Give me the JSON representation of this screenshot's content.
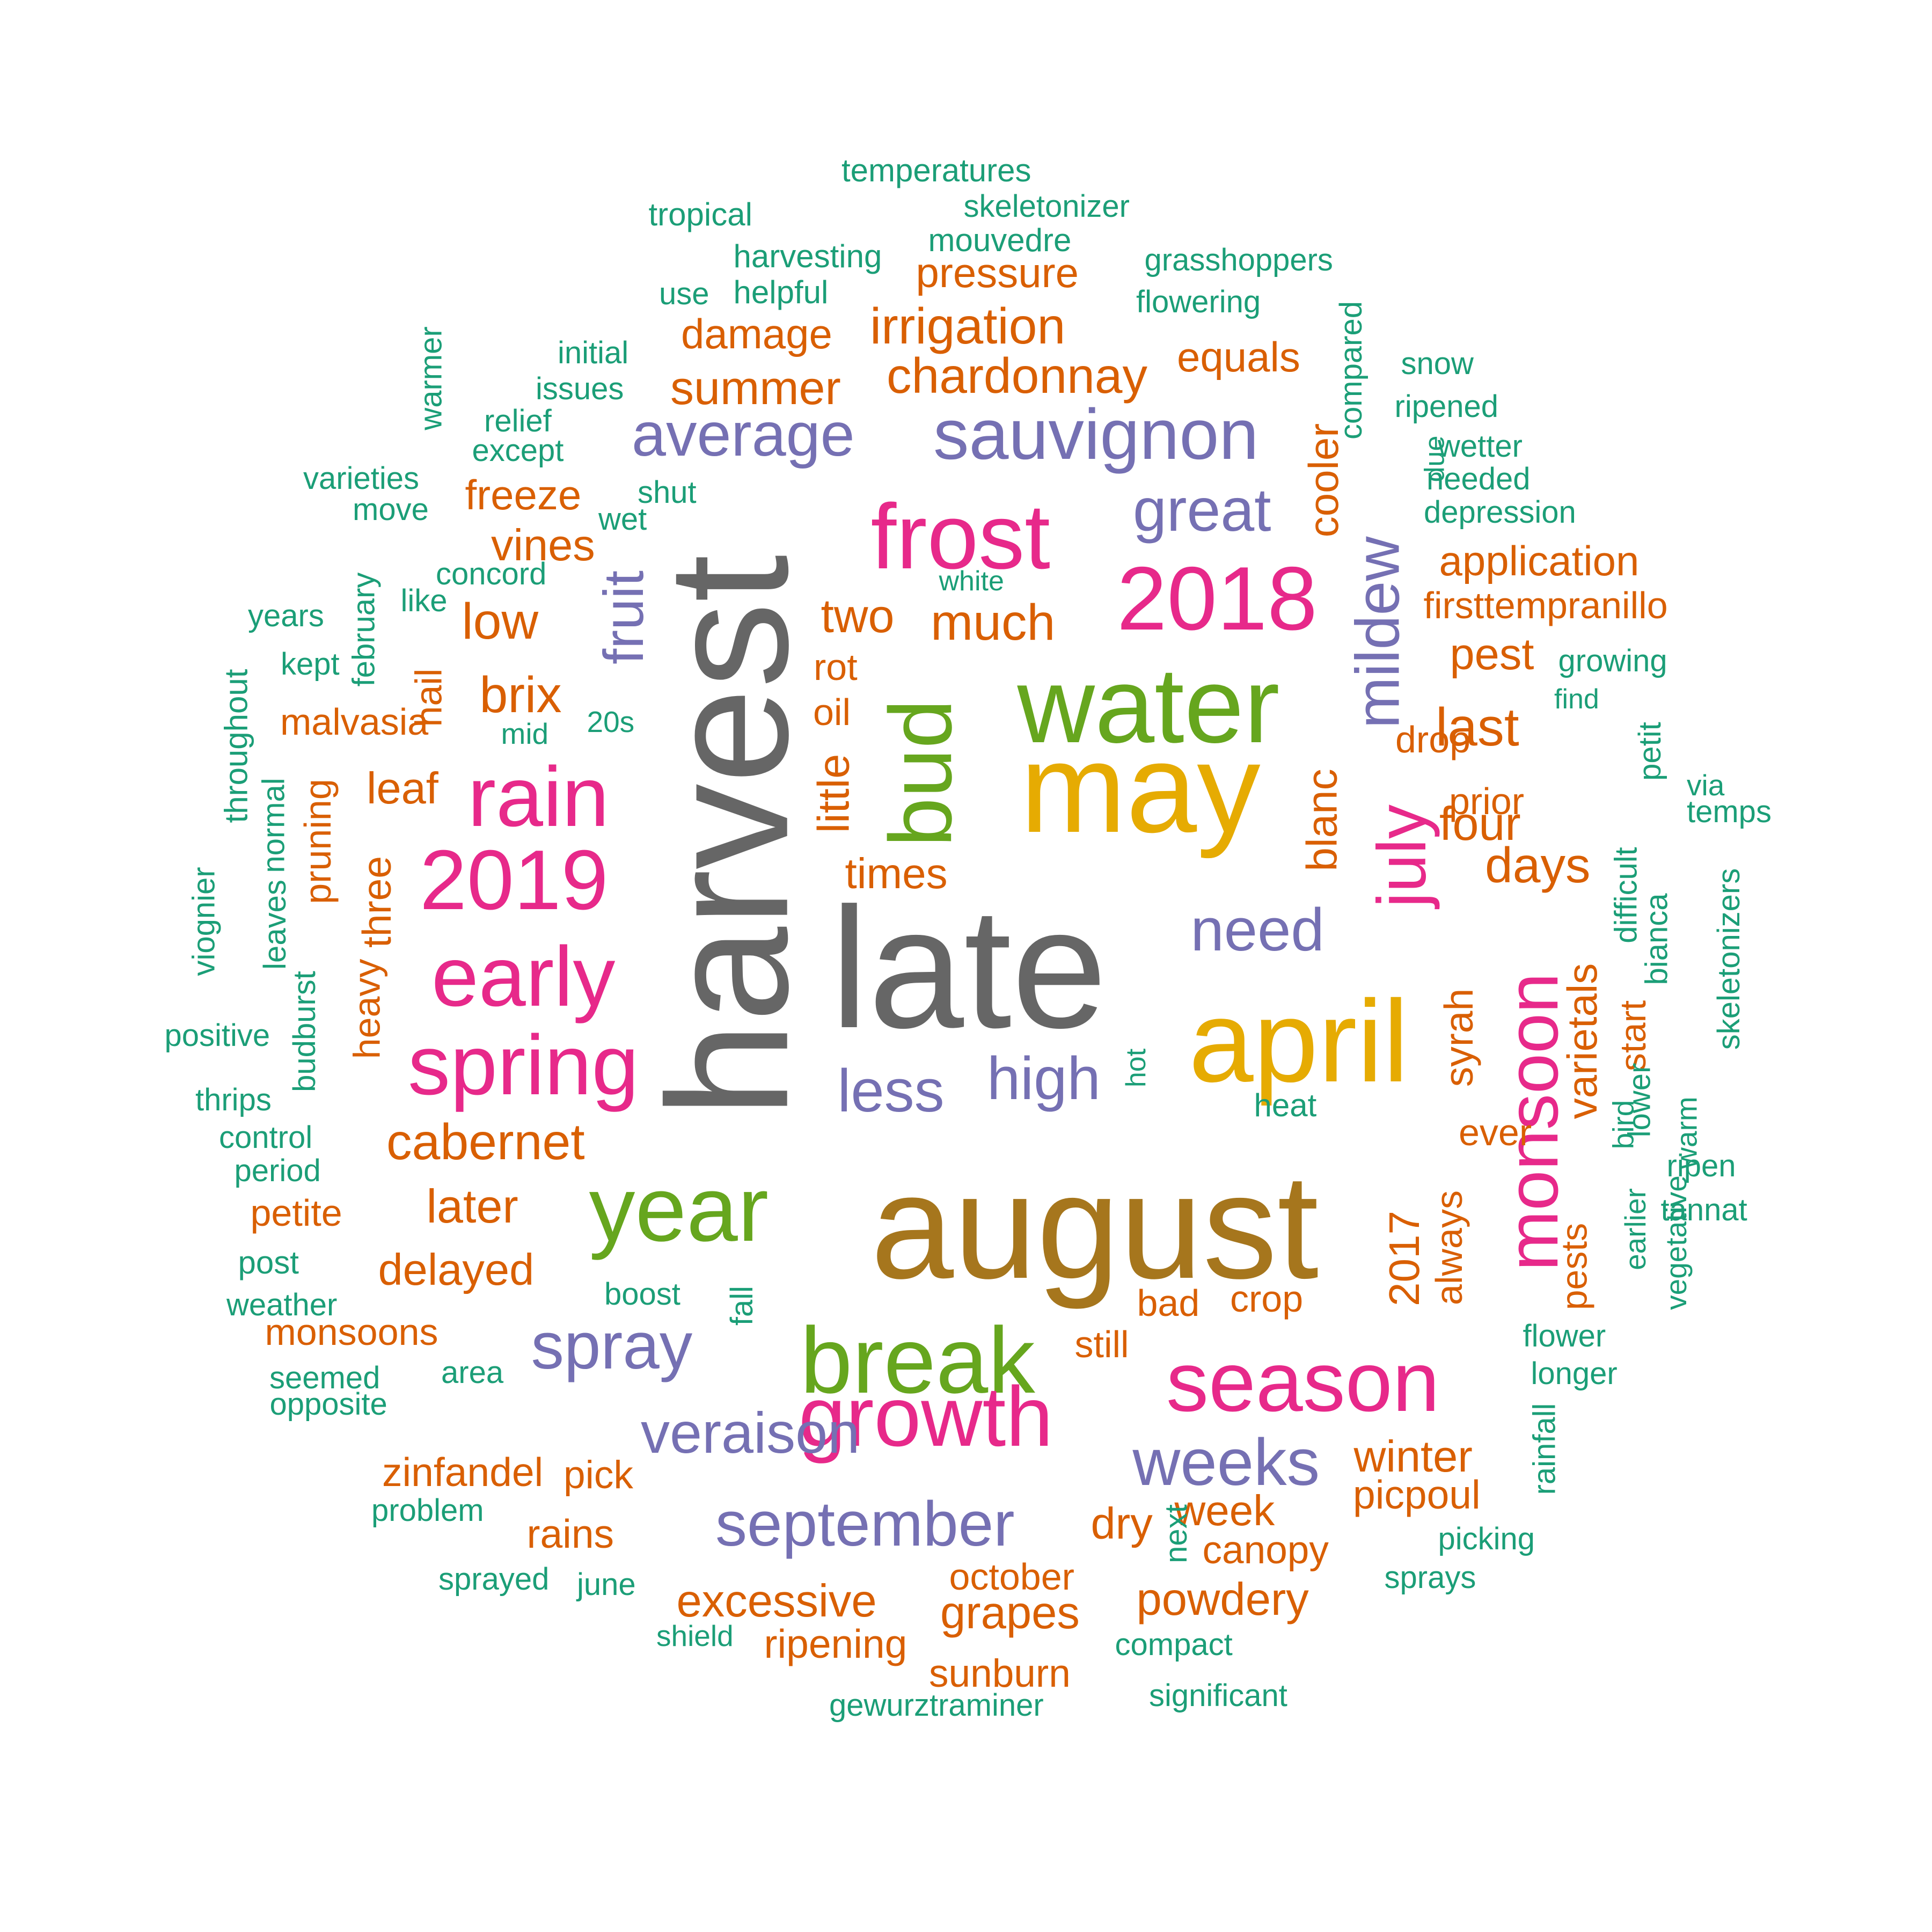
{
  "colors": {
    "gray": "#666666",
    "gold": "#e6ab02",
    "brown": "#a6761d",
    "green": "#66a61e",
    "pink": "#e7298a",
    "purple": "#7570b3",
    "orange": "#d95f02",
    "teal": "#1b9e77"
  },
  "words": [
    {
      "text": "harvest",
      "color": "gray"
    },
    {
      "text": "late",
      "color": "gray"
    },
    {
      "text": "august",
      "color": "brown"
    },
    {
      "text": "may",
      "color": "gold"
    },
    {
      "text": "april",
      "color": "gold"
    },
    {
      "text": "water",
      "color": "green"
    },
    {
      "text": "year",
      "color": "green"
    },
    {
      "text": "break",
      "color": "green"
    },
    {
      "text": "bud",
      "color": "green"
    },
    {
      "text": "frost",
      "color": "pink"
    },
    {
      "text": "2018",
      "color": "pink"
    },
    {
      "text": "rain",
      "color": "pink"
    },
    {
      "text": "2019",
      "color": "pink"
    },
    {
      "text": "early",
      "color": "pink"
    },
    {
      "text": "spring",
      "color": "pink"
    },
    {
      "text": "growth",
      "color": "pink"
    },
    {
      "text": "season",
      "color": "pink"
    },
    {
      "text": "monsoon",
      "color": "pink"
    },
    {
      "text": "july",
      "color": "pink"
    },
    {
      "text": "sauvignon",
      "color": "purple"
    },
    {
      "text": "average",
      "color": "purple"
    },
    {
      "text": "great",
      "color": "purple"
    },
    {
      "text": "mildew",
      "color": "purple"
    },
    {
      "text": "fruit",
      "color": "purple"
    },
    {
      "text": "need",
      "color": "purple"
    },
    {
      "text": "less",
      "color": "purple"
    },
    {
      "text": "high",
      "color": "purple"
    },
    {
      "text": "spray",
      "color": "purple"
    },
    {
      "text": "veraison",
      "color": "purple"
    },
    {
      "text": "weeks",
      "color": "purple"
    },
    {
      "text": "september",
      "color": "purple"
    },
    {
      "text": "pressure",
      "color": "orange"
    },
    {
      "text": "irrigation",
      "color": "orange"
    },
    {
      "text": "damage",
      "color": "orange"
    },
    {
      "text": "chardonnay",
      "color": "orange"
    },
    {
      "text": "summer",
      "color": "orange"
    },
    {
      "text": "equals",
      "color": "orange"
    },
    {
      "text": "cooler",
      "color": "orange"
    },
    {
      "text": "freeze",
      "color": "orange"
    },
    {
      "text": "vines",
      "color": "orange"
    },
    {
      "text": "low",
      "color": "orange"
    },
    {
      "text": "two",
      "color": "orange"
    },
    {
      "text": "much",
      "color": "orange"
    },
    {
      "text": "application",
      "color": "orange"
    },
    {
      "text": "firsttempranillo",
      "color": "orange"
    },
    {
      "text": "pest",
      "color": "orange"
    },
    {
      "text": "brix",
      "color": "orange"
    },
    {
      "text": "rot",
      "color": "orange"
    },
    {
      "text": "oil",
      "color": "orange"
    },
    {
      "text": "hail",
      "color": "orange"
    },
    {
      "text": "malvasia",
      "color": "orange"
    },
    {
      "text": "last",
      "color": "orange"
    },
    {
      "text": "drop",
      "color": "orange"
    },
    {
      "text": "leaf",
      "color": "orange"
    },
    {
      "text": "little",
      "color": "orange"
    },
    {
      "text": "blanc",
      "color": "orange"
    },
    {
      "text": "four",
      "color": "orange"
    },
    {
      "text": "prior",
      "color": "orange"
    },
    {
      "text": "days",
      "color": "orange"
    },
    {
      "text": "pruning",
      "color": "orange"
    },
    {
      "text": "three",
      "color": "orange"
    },
    {
      "text": "times",
      "color": "orange"
    },
    {
      "text": "heavy",
      "color": "orange"
    },
    {
      "text": "syrah",
      "color": "orange"
    },
    {
      "text": "varietals",
      "color": "orange"
    },
    {
      "text": "start",
      "color": "orange"
    },
    {
      "text": "cabernet",
      "color": "orange"
    },
    {
      "text": "ever",
      "color": "orange"
    },
    {
      "text": "later",
      "color": "orange"
    },
    {
      "text": "petite",
      "color": "orange"
    },
    {
      "text": "2017",
      "color": "orange"
    },
    {
      "text": "always",
      "color": "orange"
    },
    {
      "text": "pests",
      "color": "orange"
    },
    {
      "text": "delayed",
      "color": "orange"
    },
    {
      "text": "bad",
      "color": "orange"
    },
    {
      "text": "crop",
      "color": "orange"
    },
    {
      "text": "monsoons",
      "color": "orange"
    },
    {
      "text": "still",
      "color": "orange"
    },
    {
      "text": "winter",
      "color": "orange"
    },
    {
      "text": "zinfandel",
      "color": "orange"
    },
    {
      "text": "pick",
      "color": "orange"
    },
    {
      "text": "picpoul",
      "color": "orange"
    },
    {
      "text": "dry",
      "color": "orange"
    },
    {
      "text": "week",
      "color": "orange"
    },
    {
      "text": "rains",
      "color": "orange"
    },
    {
      "text": "canopy",
      "color": "orange"
    },
    {
      "text": "october",
      "color": "orange"
    },
    {
      "text": "excessive",
      "color": "orange"
    },
    {
      "text": "grapes",
      "color": "orange"
    },
    {
      "text": "powdery",
      "color": "orange"
    },
    {
      "text": "ripening",
      "color": "orange"
    },
    {
      "text": "sunburn",
      "color": "orange"
    },
    {
      "text": "temperatures",
      "color": "teal"
    },
    {
      "text": "tropical",
      "color": "teal"
    },
    {
      "text": "skeletonizer",
      "color": "teal"
    },
    {
      "text": "mouvedre",
      "color": "teal"
    },
    {
      "text": "harvesting",
      "color": "teal"
    },
    {
      "text": "grasshoppers",
      "color": "teal"
    },
    {
      "text": "use",
      "color": "teal"
    },
    {
      "text": "helpful",
      "color": "teal"
    },
    {
      "text": "flowering",
      "color": "teal"
    },
    {
      "text": "warmer",
      "color": "teal"
    },
    {
      "text": "initial",
      "color": "teal"
    },
    {
      "text": "compared",
      "color": "teal"
    },
    {
      "text": "snow",
      "color": "teal"
    },
    {
      "text": "issues",
      "color": "teal"
    },
    {
      "text": "relief",
      "color": "teal"
    },
    {
      "text": "ripened",
      "color": "teal"
    },
    {
      "text": "except",
      "color": "teal"
    },
    {
      "text": "wetter",
      "color": "teal"
    },
    {
      "text": "due",
      "color": "teal"
    },
    {
      "text": "varieties",
      "color": "teal"
    },
    {
      "text": "shut",
      "color": "teal"
    },
    {
      "text": "needed",
      "color": "teal"
    },
    {
      "text": "move",
      "color": "teal"
    },
    {
      "text": "wet",
      "color": "teal"
    },
    {
      "text": "depression",
      "color": "teal"
    },
    {
      "text": "concord",
      "color": "teal"
    },
    {
      "text": "white",
      "color": "teal"
    },
    {
      "text": "february",
      "color": "teal"
    },
    {
      "text": "years",
      "color": "teal"
    },
    {
      "text": "like",
      "color": "teal"
    },
    {
      "text": "kept",
      "color": "teal"
    },
    {
      "text": "growing",
      "color": "teal"
    },
    {
      "text": "throughout",
      "color": "teal"
    },
    {
      "text": "find",
      "color": "teal"
    },
    {
      "text": "mid",
      "color": "teal"
    },
    {
      "text": "20s",
      "color": "teal"
    },
    {
      "text": "petit",
      "color": "teal"
    },
    {
      "text": "normal",
      "color": "teal"
    },
    {
      "text": "via",
      "color": "teal"
    },
    {
      "text": "temps",
      "color": "teal"
    },
    {
      "text": "viognier",
      "color": "teal"
    },
    {
      "text": "difficult",
      "color": "teal"
    },
    {
      "text": "leaves",
      "color": "teal"
    },
    {
      "text": "bianca",
      "color": "teal"
    },
    {
      "text": "skeletonizers",
      "color": "teal"
    },
    {
      "text": "positive",
      "color": "teal"
    },
    {
      "text": "budburst",
      "color": "teal"
    },
    {
      "text": "hot",
      "color": "teal"
    },
    {
      "text": "lower",
      "color": "teal"
    },
    {
      "text": "thrips",
      "color": "teal"
    },
    {
      "text": "heat",
      "color": "teal"
    },
    {
      "text": "warm",
      "color": "teal"
    },
    {
      "text": "control",
      "color": "teal"
    },
    {
      "text": "bird",
      "color": "teal"
    },
    {
      "text": "period",
      "color": "teal"
    },
    {
      "text": "ripen",
      "color": "teal"
    },
    {
      "text": "tannat",
      "color": "teal"
    },
    {
      "text": "earlier",
      "color": "teal"
    },
    {
      "text": "post",
      "color": "teal"
    },
    {
      "text": "vegetative",
      "color": "teal"
    },
    {
      "text": "boost",
      "color": "teal"
    },
    {
      "text": "weather",
      "color": "teal"
    },
    {
      "text": "fall",
      "color": "teal"
    },
    {
      "text": "flower",
      "color": "teal"
    },
    {
      "text": "seemed",
      "color": "teal"
    },
    {
      "text": "area",
      "color": "teal"
    },
    {
      "text": "longer",
      "color": "teal"
    },
    {
      "text": "opposite",
      "color": "teal"
    },
    {
      "text": "rainfall",
      "color": "teal"
    },
    {
      "text": "problem",
      "color": "teal"
    },
    {
      "text": "next",
      "color": "teal"
    },
    {
      "text": "picking",
      "color": "teal"
    },
    {
      "text": "sprayed",
      "color": "teal"
    },
    {
      "text": "june",
      "color": "teal"
    },
    {
      "text": "sprays",
      "color": "teal"
    },
    {
      "text": "shield",
      "color": "teal"
    },
    {
      "text": "compact",
      "color": "teal"
    },
    {
      "text": "gewurztraminer",
      "color": "teal"
    },
    {
      "text": "significant",
      "color": "teal"
    }
  ]
}
